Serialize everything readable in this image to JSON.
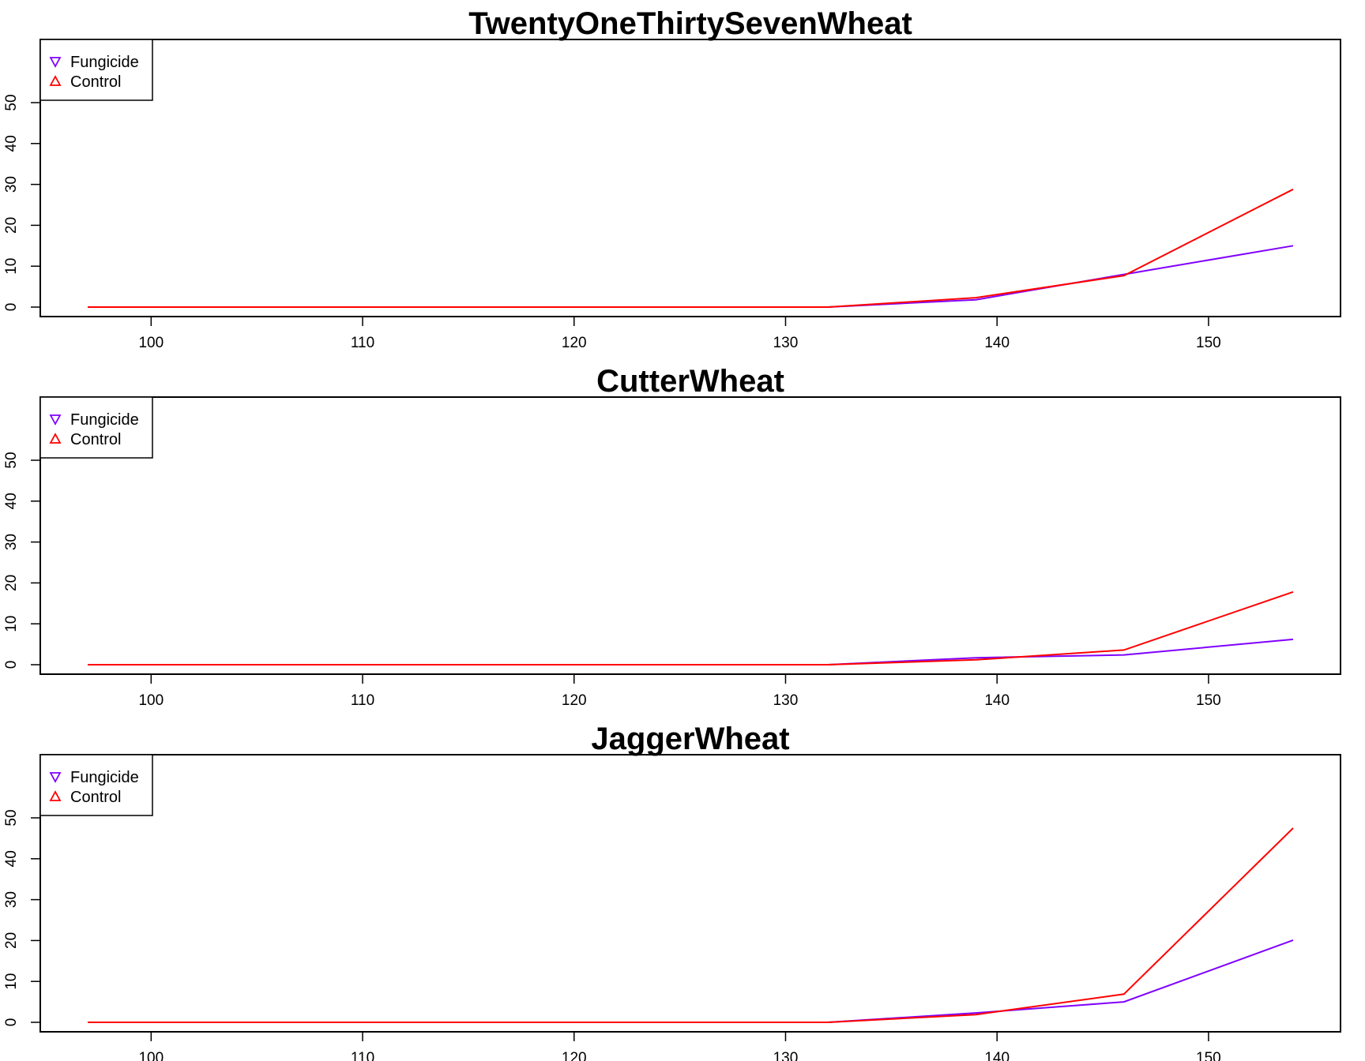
{
  "chart_data": [
    {
      "type": "line",
      "title": "TwentyOneThirtySevenWheat",
      "xlabel": "",
      "ylabel": "",
      "xlim": [
        97,
        154
      ],
      "ylim": [
        0,
        50
      ],
      "x_ticks": [
        100,
        110,
        120,
        130,
        140,
        150
      ],
      "y_ticks": [
        0,
        10,
        20,
        30,
        40,
        50
      ],
      "x": [
        97,
        132,
        139,
        146,
        154
      ],
      "series": [
        {
          "name": "Fungicide",
          "color": "#8000ff",
          "marker": "triangle-down",
          "values": [
            0,
            0,
            1.8,
            8,
            15
          ]
        },
        {
          "name": "Control",
          "color": "#ff0000",
          "marker": "triangle-up",
          "values": [
            0,
            0,
            2.3,
            7.7,
            28.8
          ]
        }
      ],
      "legend_position": "top-left",
      "grid": false
    },
    {
      "type": "line",
      "title": "CutterWheat",
      "xlabel": "",
      "ylabel": "",
      "xlim": [
        97,
        154
      ],
      "ylim": [
        0,
        50
      ],
      "x_ticks": [
        100,
        110,
        120,
        130,
        140,
        150
      ],
      "y_ticks": [
        0,
        10,
        20,
        30,
        40,
        50
      ],
      "x": [
        97,
        132,
        139,
        146,
        154
      ],
      "series": [
        {
          "name": "Fungicide",
          "color": "#8000ff",
          "marker": "triangle-down",
          "values": [
            0,
            0,
            1.7,
            2.4,
            6.2
          ]
        },
        {
          "name": "Control",
          "color": "#ff0000",
          "marker": "triangle-up",
          "values": [
            0,
            0,
            1.2,
            3.6,
            17.8
          ]
        }
      ],
      "legend_position": "top-left",
      "grid": false
    },
    {
      "type": "line",
      "title": "JaggerWheat",
      "xlabel": "",
      "ylabel": "",
      "xlim": [
        97,
        154
      ],
      "ylim": [
        0,
        50
      ],
      "x_ticks": [
        100,
        110,
        120,
        130,
        140,
        150
      ],
      "y_ticks": [
        0,
        10,
        20,
        30,
        40,
        50
      ],
      "x": [
        97,
        132,
        139,
        146,
        154
      ],
      "series": [
        {
          "name": "Fungicide",
          "color": "#8000ff",
          "marker": "triangle-down",
          "values": [
            0,
            0,
            2.3,
            5,
            20.1
          ]
        },
        {
          "name": "Control",
          "color": "#ff0000",
          "marker": "triangle-up",
          "values": [
            0,
            0,
            1.9,
            6.9,
            47.5
          ]
        }
      ],
      "legend_position": "top-left",
      "grid": false
    }
  ]
}
